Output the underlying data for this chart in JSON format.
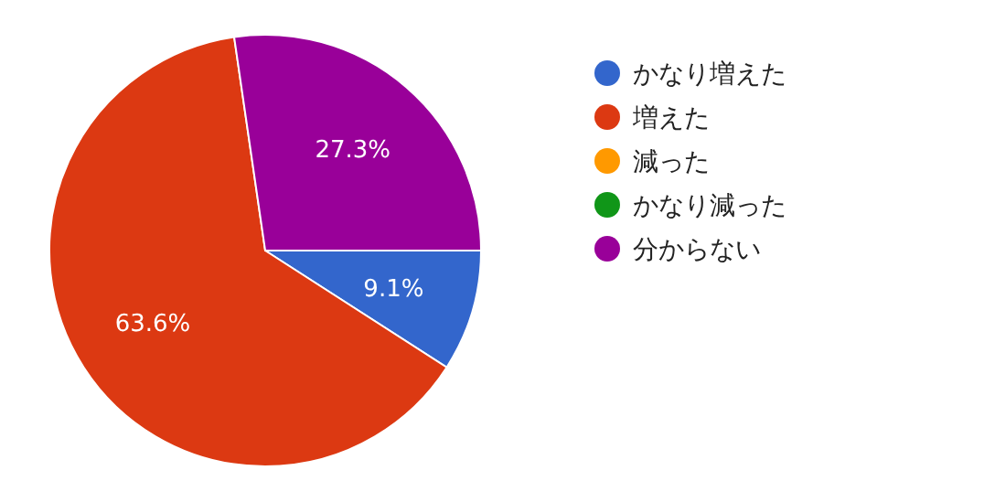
{
  "chart_data": {
    "type": "pie",
    "categories": [
      "かなり増えた",
      "増えた",
      "減った",
      "かなり減った",
      "分からない"
    ],
    "values": [
      9.1,
      63.6,
      0,
      0,
      27.3
    ],
    "colors": [
      "#3366cc",
      "#dc3912",
      "#ff9900",
      "#109618",
      "#990099"
    ],
    "value_labels": [
      "9.1%",
      "63.6%",
      null,
      null,
      "27.3%"
    ],
    "legend": "right"
  }
}
